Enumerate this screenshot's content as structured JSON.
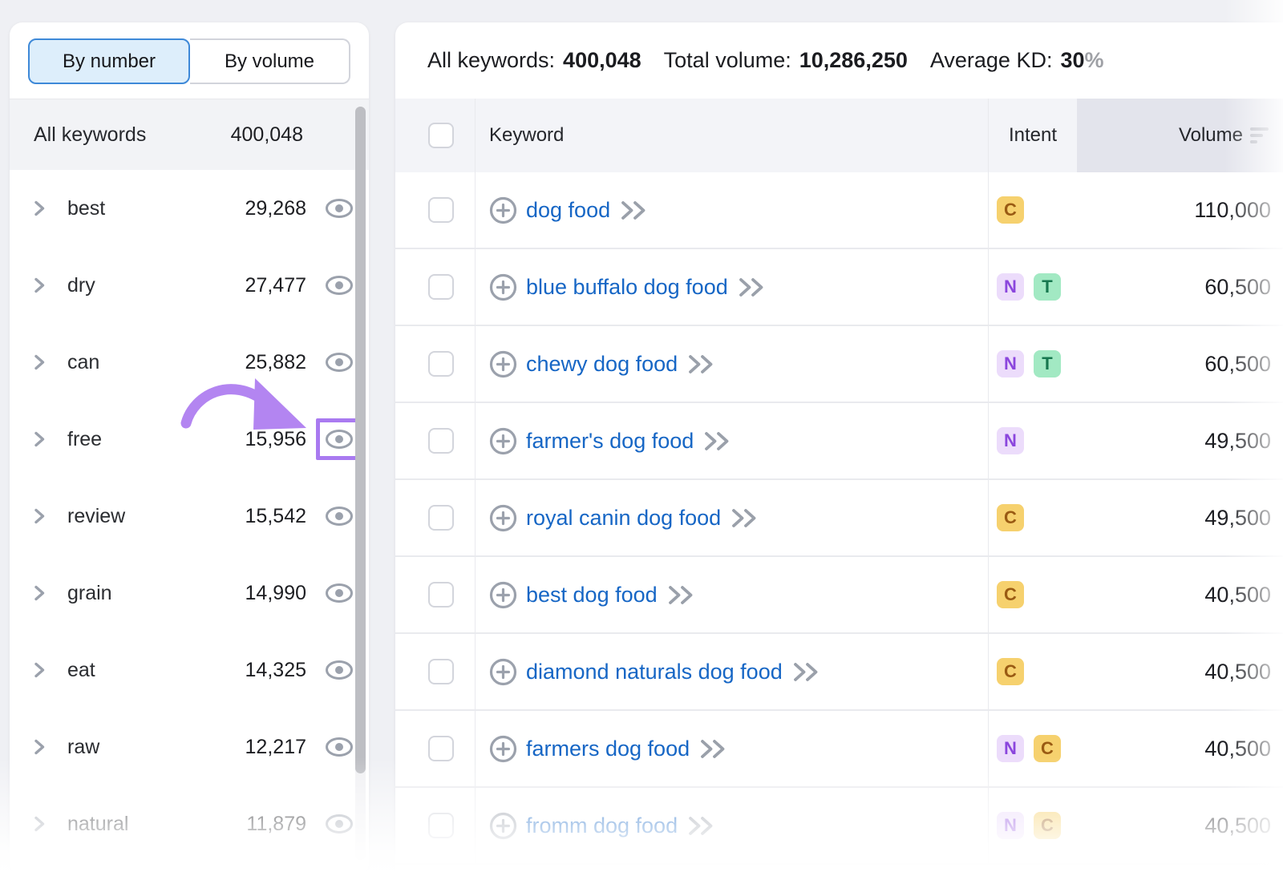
{
  "sidebar": {
    "toggle": {
      "by_number": "By number",
      "by_volume": "By volume",
      "selected": "By number"
    },
    "header": {
      "label": "All keywords",
      "count": "400,048"
    },
    "items": [
      {
        "label": "best",
        "count": "29,268",
        "highlighted": false
      },
      {
        "label": "dry",
        "count": "27,477",
        "highlighted": false
      },
      {
        "label": "can",
        "count": "25,882",
        "highlighted": false
      },
      {
        "label": "free",
        "count": "15,956",
        "highlighted": true
      },
      {
        "label": "review",
        "count": "15,542",
        "highlighted": false
      },
      {
        "label": "grain",
        "count": "14,990",
        "highlighted": false
      },
      {
        "label": "eat",
        "count": "14,325",
        "highlighted": false
      },
      {
        "label": "raw",
        "count": "12,217",
        "highlighted": false
      },
      {
        "label": "natural",
        "count": "11,879",
        "highlighted": false
      }
    ]
  },
  "main": {
    "stats": [
      {
        "label": "All keywords:",
        "value": "400,048"
      },
      {
        "label": "Total volume:",
        "value": "10,286,250"
      },
      {
        "label": "Average KD:",
        "value": "30",
        "suffix": "%"
      }
    ],
    "table": {
      "columns": {
        "keyword": "Keyword",
        "intent": "Intent",
        "volume": "Volume"
      },
      "rows": [
        {
          "keyword": "dog food",
          "intents": [
            "C"
          ],
          "volume": "110,000"
        },
        {
          "keyword": "blue buffalo dog food",
          "intents": [
            "N",
            "T"
          ],
          "volume": "60,500"
        },
        {
          "keyword": "chewy dog food",
          "intents": [
            "N",
            "T"
          ],
          "volume": "60,500"
        },
        {
          "keyword": "farmer's dog food",
          "intents": [
            "N"
          ],
          "volume": "49,500"
        },
        {
          "keyword": "royal canin dog food",
          "intents": [
            "C"
          ],
          "volume": "49,500"
        },
        {
          "keyword": "best dog food",
          "intents": [
            "C"
          ],
          "volume": "40,500"
        },
        {
          "keyword": "diamond naturals dog food",
          "intents": [
            "C"
          ],
          "volume": "40,500"
        },
        {
          "keyword": "farmers dog food",
          "intents": [
            "N",
            "C"
          ],
          "volume": "40,500"
        },
        {
          "keyword": "fromm dog food",
          "intents": [
            "N",
            "C"
          ],
          "volume": "40,500"
        }
      ]
    }
  },
  "intent_legend": {
    "C": {
      "bg": "#f6d16e",
      "fg": "#9a5b13"
    },
    "N": {
      "bg": "#ecdcfb",
      "fg": "#8b46dd"
    },
    "T": {
      "bg": "#a2e9c3",
      "fg": "#17784f"
    }
  },
  "colors": {
    "annotation_purple": "#b385f1",
    "highlight_box_purple": "#a97af0",
    "link_blue": "#1666c5",
    "active_toggle_blue": "#3e89d8",
    "icon_gray": "#9ba1ac"
  }
}
